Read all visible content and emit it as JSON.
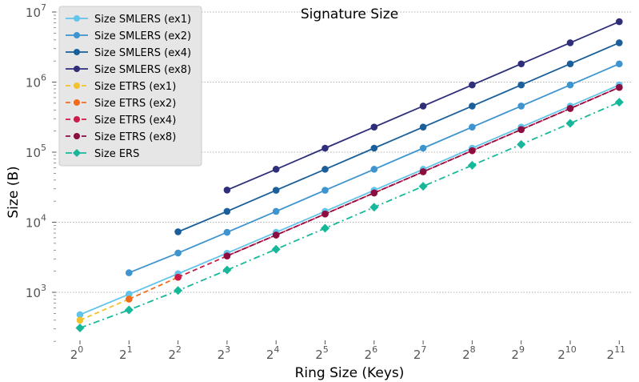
{
  "chart_data": {
    "type": "line",
    "title": "Signature Size",
    "xlabel": "Ring Size (Keys)",
    "ylabel": "Size (B)",
    "x_scale": "log2",
    "y_scale": "log10",
    "x": [
      1,
      2,
      4,
      8,
      16,
      32,
      64,
      128,
      256,
      512,
      1024,
      2048
    ],
    "x_tick_base": "2",
    "x_tick_exponents": [
      "0",
      "1",
      "2",
      "3",
      "4",
      "5",
      "6",
      "7",
      "8",
      "9",
      "10",
      "11"
    ],
    "y_tick_base": "10",
    "y_tick_exponents": [
      "3",
      "4",
      "5",
      "6",
      "7"
    ],
    "ylim": [
      180,
      10000000
    ],
    "grid": "horizontal dotted at major y ticks",
    "legend_position": "top-left",
    "series": [
      {
        "name": "Size SMLERS (ex1)",
        "color": "#62c4ea",
        "style": "solid",
        "marker": "circle",
        "values": [
          480,
          940,
          1840,
          3620,
          7180,
          14300,
          28600,
          57000,
          114000,
          228000,
          455000,
          910000
        ]
      },
      {
        "name": "Size SMLERS (ex2)",
        "color": "#3d94cf",
        "style": "solid",
        "marker": "circle",
        "values": [
          null,
          1900,
          3640,
          7180,
          14300,
          28600,
          57000,
          114000,
          228000,
          455000,
          910000,
          1820000
        ]
      },
      {
        "name": "Size SMLERS (ex4)",
        "color": "#1a5f99",
        "style": "solid",
        "marker": "circle",
        "values": [
          null,
          null,
          7300,
          14300,
          28600,
          57000,
          114000,
          228000,
          455000,
          910000,
          1820000,
          3640000
        ]
      },
      {
        "name": "Size SMLERS (ex8)",
        "color": "#2e2e7a",
        "style": "solid",
        "marker": "circle",
        "values": [
          null,
          null,
          null,
          28800,
          57000,
          114000,
          228000,
          455000,
          910000,
          1820000,
          3640000,
          7280000
        ]
      },
      {
        "name": "Size ETRS (ex1)",
        "color": "#f2c12e",
        "style": "dashed",
        "marker": "circle",
        "values": [
          400,
          800,
          null,
          null,
          null,
          null,
          null,
          null,
          null,
          null,
          null,
          null
        ]
      },
      {
        "name": "Size ETRS (ex2)",
        "color": "#f26b1d",
        "style": "dashed",
        "marker": "circle",
        "values": [
          null,
          800,
          1640,
          null,
          null,
          null,
          null,
          null,
          null,
          null,
          null,
          null
        ]
      },
      {
        "name": "Size ETRS (ex4)",
        "color": "#cc1a4a",
        "style": "dashed",
        "marker": "circle",
        "values": [
          null,
          null,
          1640,
          3300,
          6560,
          13100,
          26200,
          52500,
          105000,
          210000,
          420000,
          840000
        ]
      },
      {
        "name": "Size ETRS (ex8)",
        "color": "#8c0d3f",
        "style": "dashed",
        "marker": "circle",
        "values": [
          null,
          null,
          null,
          3300,
          6560,
          13100,
          26200,
          52500,
          105000,
          210000,
          420000,
          840000
        ]
      },
      {
        "name": "Size ERS",
        "color": "#17b89a",
        "style": "dashdot",
        "marker": "diamond",
        "values": [
          310,
          560,
          1060,
          2080,
          4120,
          8200,
          16400,
          32600,
          65000,
          129000,
          258000,
          516000
        ]
      }
    ]
  }
}
